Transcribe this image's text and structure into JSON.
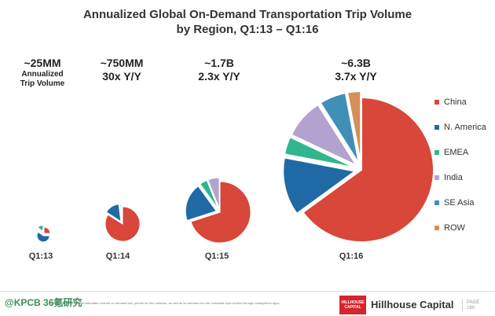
{
  "chart_data": {
    "type": "pie",
    "title": "Annualized Global On-Demand Transportation Trip Volume",
    "subtitle": "by Region, Q1:13 – Q1:16",
    "legend": [
      "China",
      "N. America",
      "EMEA",
      "India",
      "SE Asia",
      "ROW"
    ],
    "legend_position": "right",
    "colors": {
      "China": "#d9463a",
      "N. America": "#1f6aa5",
      "EMEA": "#2fb68e",
      "India": "#b3a2cf",
      "SE Asia": "#3f8fb8",
      "ROW": "#d4905a"
    },
    "pies": [
      {
        "label": "Q1:13",
        "volume": "~25MM",
        "growth_lines": [
          "Annualized",
          "Trip Volume"
        ],
        "slices": [
          {
            "name": "China",
            "share": 0.25
          },
          {
            "name": "N. America",
            "share": 0.6
          },
          {
            "name": "EMEA",
            "share": 0.15
          }
        ]
      },
      {
        "label": "Q1:14",
        "volume": "~750MM",
        "growth_lines": [
          "30x Y/Y"
        ],
        "slices": [
          {
            "name": "China",
            "share": 0.84
          },
          {
            "name": "N. America",
            "share": 0.14
          },
          {
            "name": "EMEA",
            "share": 0.01
          },
          {
            "name": "India",
            "share": 0.01
          }
        ]
      },
      {
        "label": "Q1:15",
        "volume": "~1.7B",
        "growth_lines": [
          "2.3x Y/Y"
        ],
        "slices": [
          {
            "name": "China",
            "share": 0.7
          },
          {
            "name": "N. America",
            "share": 0.2
          },
          {
            "name": "EMEA",
            "share": 0.04
          },
          {
            "name": "India",
            "share": 0.06
          }
        ]
      },
      {
        "label": "Q1:16",
        "volume": "~6.3B",
        "growth_lines": [
          "3.7x Y/Y"
        ],
        "slices": [
          {
            "name": "China",
            "share": 0.65
          },
          {
            "name": "N. America",
            "share": 0.13
          },
          {
            "name": "EMEA",
            "share": 0.04
          },
          {
            "name": "India",
            "share": 0.09
          },
          {
            "name": "SE Asia",
            "share": 0.06
          },
          {
            "name": "ROW",
            "share": 0.03
          }
        ]
      }
    ]
  },
  "footer": {
    "footnote": "Source: Hillhouse Capital estimates; include on-demand taxi, private for-hire vehicles, as well as on-demand for-hire motorbike trips booked through smartphone apps.",
    "watermark": "@KPCB 36氪研究",
    "brand_logo_line1": "HILLHOUSE",
    "brand_logo_line2": "CAPITAL",
    "brand": "Hillhouse Capital",
    "page_label": "PAGE",
    "page_number": "180"
  }
}
